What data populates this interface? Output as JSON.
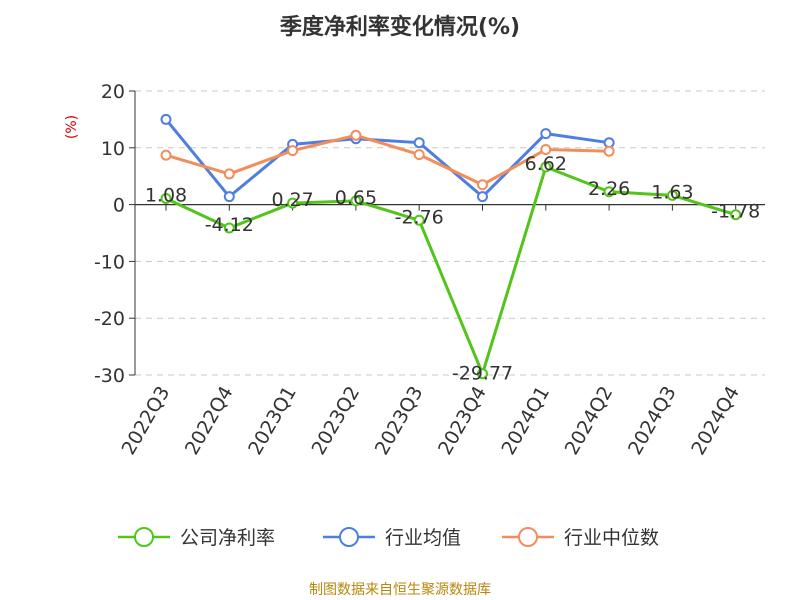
{
  "chart_data": {
    "type": "line",
    "title": "季度净利率变化情况(%)",
    "ylabel": "(%)",
    "xlabel": "",
    "categories": [
      "2022Q3",
      "2022Q4",
      "2023Q1",
      "2023Q2",
      "2023Q3",
      "2023Q4",
      "2024Q1",
      "2024Q2",
      "2024Q3",
      "2024Q4"
    ],
    "ylim": [
      -30,
      20
    ],
    "yticks": [
      20,
      10,
      0,
      -10,
      -20,
      -30
    ],
    "grid": true,
    "legend_position": "bottom",
    "series": [
      {
        "name": "公司净利率",
        "color": "#52c41a",
        "values": [
          1.08,
          -4.12,
          0.27,
          0.65,
          -2.76,
          -29.77,
          6.62,
          2.26,
          1.63,
          -1.78
        ],
        "labels": [
          "1.08",
          "-4.12",
          "0.27",
          "0.65",
          "-2.76",
          "-29.77",
          "6.62",
          "2.26",
          "1.63",
          "-1.78"
        ]
      },
      {
        "name": "行业均值",
        "color": "#4e7fe0",
        "values": [
          15.0,
          1.4,
          10.6,
          11.6,
          10.9,
          1.4,
          12.5,
          10.9,
          null,
          null
        ]
      },
      {
        "name": "行业中位数",
        "color": "#f28e5b",
        "values": [
          8.7,
          5.4,
          9.5,
          12.2,
          8.8,
          3.5,
          9.7,
          9.4,
          null,
          null
        ]
      }
    ]
  },
  "source": "制图数据来自恒生聚源数据库"
}
